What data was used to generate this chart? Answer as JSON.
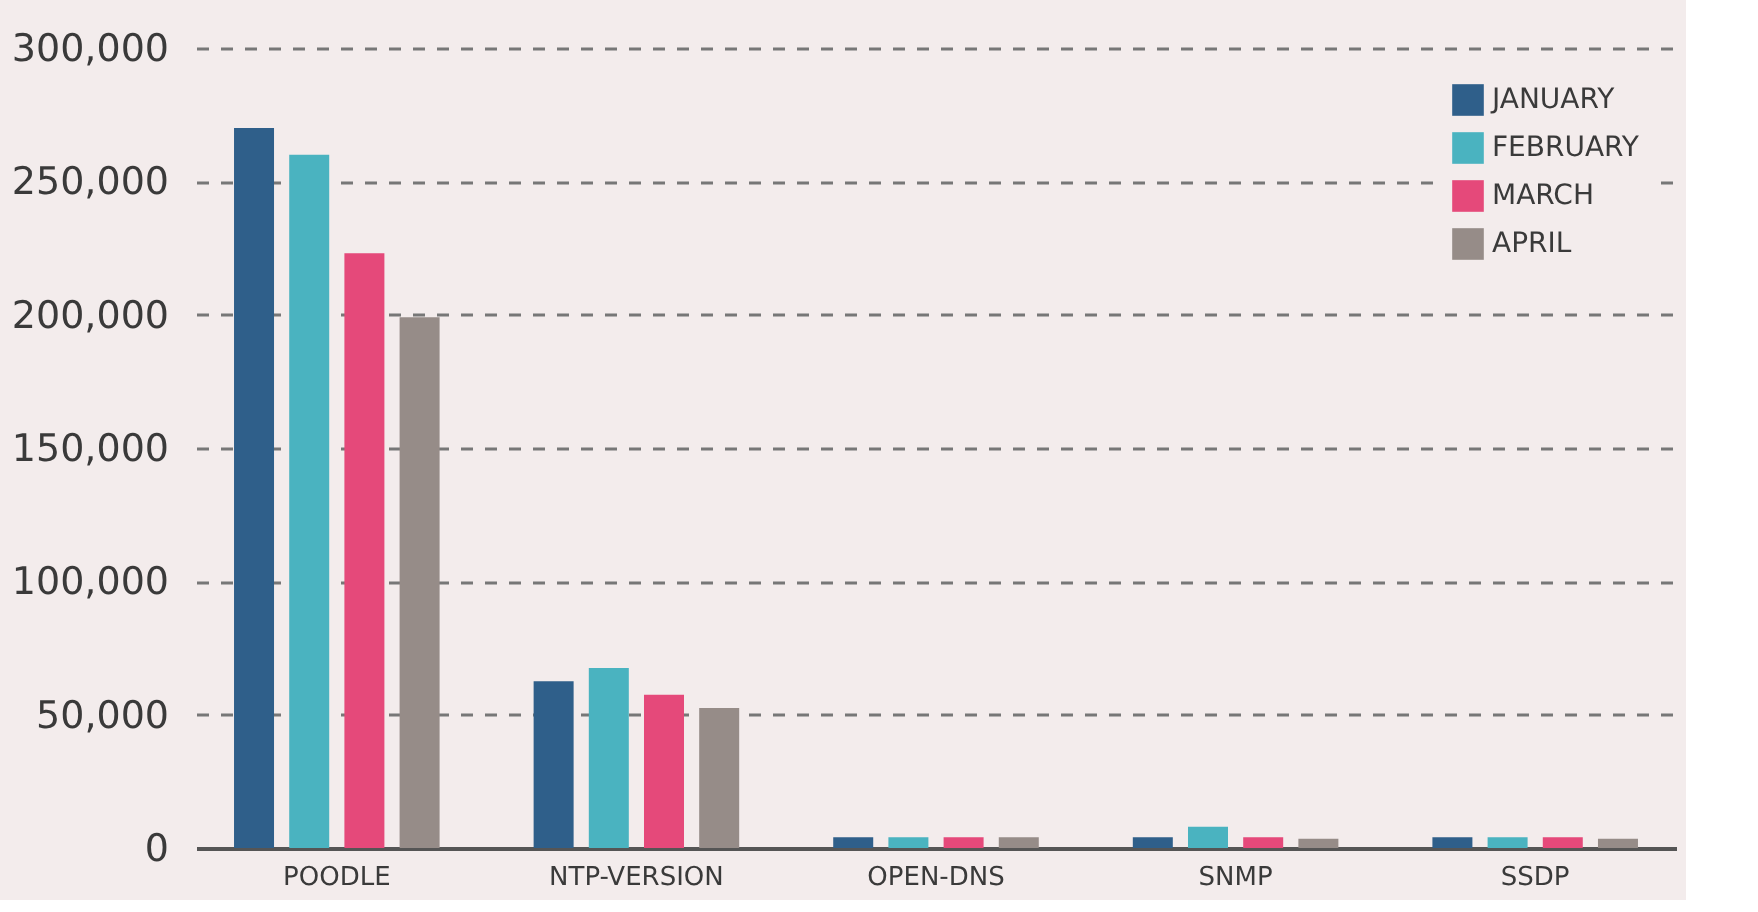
{
  "chart_data": {
    "type": "bar",
    "categories": [
      "POODLE",
      "NTP-VERSION",
      "OPEN-DNS",
      "SNMP",
      "SSDP"
    ],
    "series": [
      {
        "name": "JANUARY",
        "color": "#2f5f8a",
        "values": [
          270000,
          62500,
          4000,
          4000,
          4000
        ]
      },
      {
        "name": "FEBRUARY",
        "color": "#4ab3c0",
        "values": [
          260000,
          67500,
          4000,
          8000,
          4000
        ]
      },
      {
        "name": "MARCH",
        "color": "#e5497a",
        "values": [
          223000,
          57500,
          4000,
          4000,
          4000
        ]
      },
      {
        "name": "APRIL",
        "color": "#968c88",
        "values": [
          199000,
          52500,
          4000,
          3500,
          3500
        ]
      }
    ],
    "ylim": [
      0,
      300000
    ],
    "yticks": [
      {
        "value": 0,
        "label": "0"
      },
      {
        "value": 50000,
        "label": "50,000"
      },
      {
        "value": 100000,
        "label": "100,000"
      },
      {
        "value": 150000,
        "label": "150,000"
      },
      {
        "value": 200000,
        "label": "200,000"
      },
      {
        "value": 250000,
        "label": "250,000"
      },
      {
        "value": 300000,
        "label": "300,000"
      }
    ],
    "grid": "y",
    "legend": "top right"
  }
}
